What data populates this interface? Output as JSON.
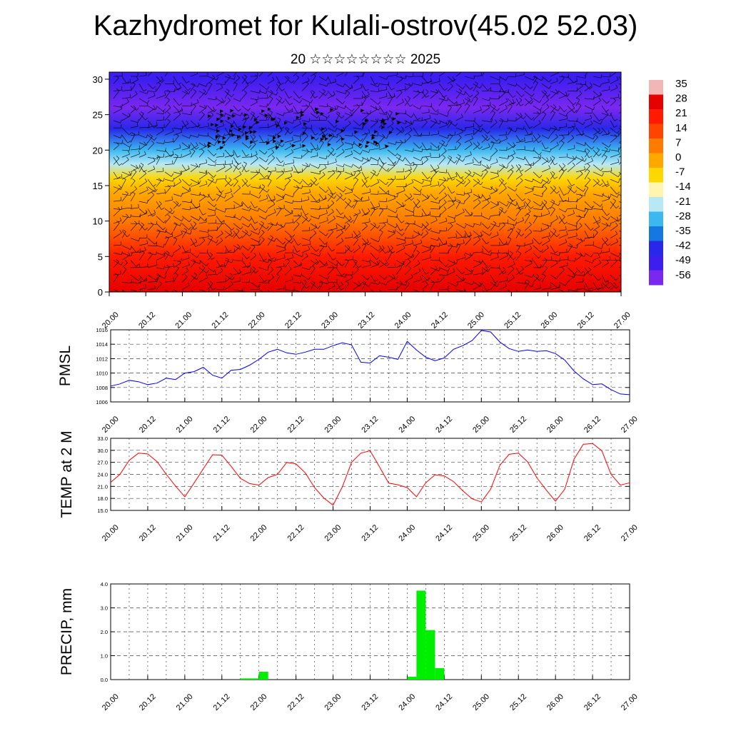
{
  "title": "Kazhydromet for Kulali-ostrov(45.02 52.03)",
  "subtitle": "20 ☆☆☆☆☆☆☆☆ 2025",
  "colors": {
    "pmsl_line": "#0000ff",
    "temp_line": "#ff0000",
    "precip_bar": "#00ee00",
    "barb": "#000000"
  },
  "chart_data": [
    {
      "id": "section",
      "type": "heatmap",
      "title": "",
      "xlabel": "",
      "ylabel": "",
      "x_tick_labels": [
        "20.00",
        "20.12",
        "21.00",
        "21.12",
        "22.00",
        "22.12",
        "23.00",
        "23.12",
        "24.00",
        "24.12",
        "25.00",
        "25.12",
        "26.00",
        "26.12",
        "27.00"
      ],
      "y_ticks": [
        0,
        5,
        10,
        15,
        20,
        25,
        30
      ],
      "ylim": [
        0,
        31
      ],
      "colorbar_labels": [
        "35",
        "28",
        "21",
        "14",
        "7",
        "0",
        "-7",
        "-14",
        "-21",
        "-28",
        "-35",
        "-42",
        "-49",
        "-56"
      ],
      "colorbar_colors": [
        "#f2b6b6",
        "#e60000",
        "#ff1a00",
        "#ff4400",
        "#ff7a00",
        "#ffa800",
        "#ffd700",
        "#fff5b0",
        "#b8e8f5",
        "#3cb8f0",
        "#1478e0",
        "#2828e8",
        "#3c1ef0",
        "#7a28f0"
      ],
      "temperature_profile_by_level": [
        {
          "level": 0,
          "value": 29
        },
        {
          "level": 5,
          "value": 22
        },
        {
          "level": 10,
          "value": 10
        },
        {
          "level": 14,
          "value": 0
        },
        {
          "level": 16,
          "value": -10
        },
        {
          "level": 18,
          "value": -20
        },
        {
          "level": 20,
          "value": -30
        },
        {
          "level": 23,
          "value": -45
        },
        {
          "level": 26,
          "value": -56
        },
        {
          "level": 30,
          "value": -50
        }
      ],
      "grid": false
    },
    {
      "id": "pmsl",
      "type": "line",
      "ylabel": "PMSL",
      "xlim": [
        0,
        168
      ],
      "ylim": [
        1006,
        1016
      ],
      "y_ticks": [
        1006,
        1008,
        1010,
        1012,
        1014,
        1016
      ],
      "x_tick_labels": [
        "20.00",
        "20.12",
        "21.00",
        "21.12",
        "22.00",
        "22.12",
        "23.00",
        "23.12",
        "24.00",
        "24.12",
        "25.00",
        "25.12",
        "26.00",
        "26.12",
        "27.00"
      ],
      "x": [
        0,
        3,
        6,
        9,
        12,
        15,
        18,
        21,
        24,
        27,
        30,
        33,
        36,
        39,
        42,
        45,
        48,
        51,
        54,
        57,
        60,
        63,
        66,
        69,
        72,
        75,
        78,
        81,
        84,
        87,
        90,
        93,
        96,
        99,
        102,
        105,
        108,
        111,
        114,
        117,
        120,
        123,
        126,
        129,
        132,
        135,
        138,
        141,
        144,
        147,
        150,
        153,
        156,
        159,
        162,
        165,
        168
      ],
      "values": [
        1008.2,
        1008.5,
        1009.0,
        1008.8,
        1008.4,
        1008.6,
        1009.3,
        1009.1,
        1010.0,
        1010.2,
        1010.8,
        1009.7,
        1009.3,
        1010.4,
        1010.5,
        1011.1,
        1011.9,
        1012.9,
        1013.3,
        1012.8,
        1012.6,
        1012.9,
        1013.3,
        1013.3,
        1013.8,
        1014.2,
        1013.9,
        1011.5,
        1011.4,
        1012.4,
        1012.2,
        1011.9,
        1014.4,
        1013.2,
        1012.2,
        1011.7,
        1012.1,
        1013.3,
        1013.8,
        1014.5,
        1015.9,
        1015.7,
        1014.3,
        1013.4,
        1013.0,
        1013.2,
        1013.0,
        1013.1,
        1012.7,
        1011.8,
        1010.3,
        1009.2,
        1008.4,
        1008.5,
        1007.7,
        1007.1,
        1007.0
      ],
      "grid": true
    },
    {
      "id": "temp",
      "type": "line",
      "ylabel": "TEMP at 2 M",
      "xlim": [
        0,
        168
      ],
      "ylim": [
        15,
        33
      ],
      "y_tick_labels": [
        "15.0",
        "18.0",
        "21.0",
        "24.0",
        "27.0",
        "30.0",
        "33.0"
      ],
      "x_tick_labels": [
        "20.00",
        "20.12",
        "21.00",
        "21.12",
        "22.00",
        "22.12",
        "23.00",
        "23.12",
        "24.00",
        "24.12",
        "25.00",
        "25.12",
        "26.00",
        "26.12",
        "27.00"
      ],
      "x": [
        0,
        3,
        6,
        9,
        12,
        15,
        18,
        21,
        24,
        27,
        30,
        33,
        36,
        39,
        42,
        45,
        48,
        51,
        54,
        57,
        60,
        63,
        66,
        69,
        72,
        75,
        78,
        81,
        84,
        87,
        90,
        93,
        96,
        99,
        102,
        105,
        108,
        111,
        114,
        117,
        120,
        123,
        126,
        129,
        132,
        135,
        138,
        141,
        144,
        147,
        150,
        153,
        156,
        159,
        162,
        165,
        168
      ],
      "values": [
        22.0,
        24.0,
        27.5,
        29.3,
        29.1,
        27.2,
        24.0,
        21.1,
        18.4,
        21.8,
        25.4,
        28.9,
        28.8,
        26.0,
        23.0,
        21.7,
        21.3,
        23.2,
        24.0,
        27.0,
        26.6,
        24.4,
        20.7,
        18.1,
        16.3,
        20.9,
        27.0,
        29.3,
        29.9,
        25.9,
        21.8,
        21.4,
        20.7,
        18.4,
        21.9,
        23.9,
        23.6,
        22.2,
        19.9,
        17.9,
        17.1,
        20.3,
        26.3,
        29.0,
        29.3,
        27.1,
        23.1,
        20.1,
        17.3,
        20.3,
        27.8,
        31.5,
        31.7,
        29.9,
        24.0,
        21.3,
        21.9
      ],
      "grid": true
    },
    {
      "id": "precip",
      "type": "bar",
      "ylabel": "PRECIP, mm",
      "xlim": [
        0,
        168
      ],
      "ylim": [
        0,
        4.0
      ],
      "y_tick_labels": [
        "0.0",
        "1.0",
        "2.0",
        "3.0",
        "4.0"
      ],
      "x_tick_labels": [
        "20.00",
        "20.12",
        "21.00",
        "21.12",
        "22.00",
        "22.12",
        "23.00",
        "23.12",
        "24.00",
        "24.12",
        "25.00",
        "25.12",
        "26.00",
        "26.12",
        "27.00"
      ],
      "bar_width_hours": 3,
      "bars": [
        {
          "x": 42,
          "value": 0.05
        },
        {
          "x": 45,
          "value": 0.05
        },
        {
          "x": 48,
          "value": 0.33
        },
        {
          "x": 96,
          "value": 0.12
        },
        {
          "x": 99,
          "value": 3.72
        },
        {
          "x": 102,
          "value": 2.07
        },
        {
          "x": 105,
          "value": 0.48
        }
      ],
      "grid": true
    }
  ]
}
